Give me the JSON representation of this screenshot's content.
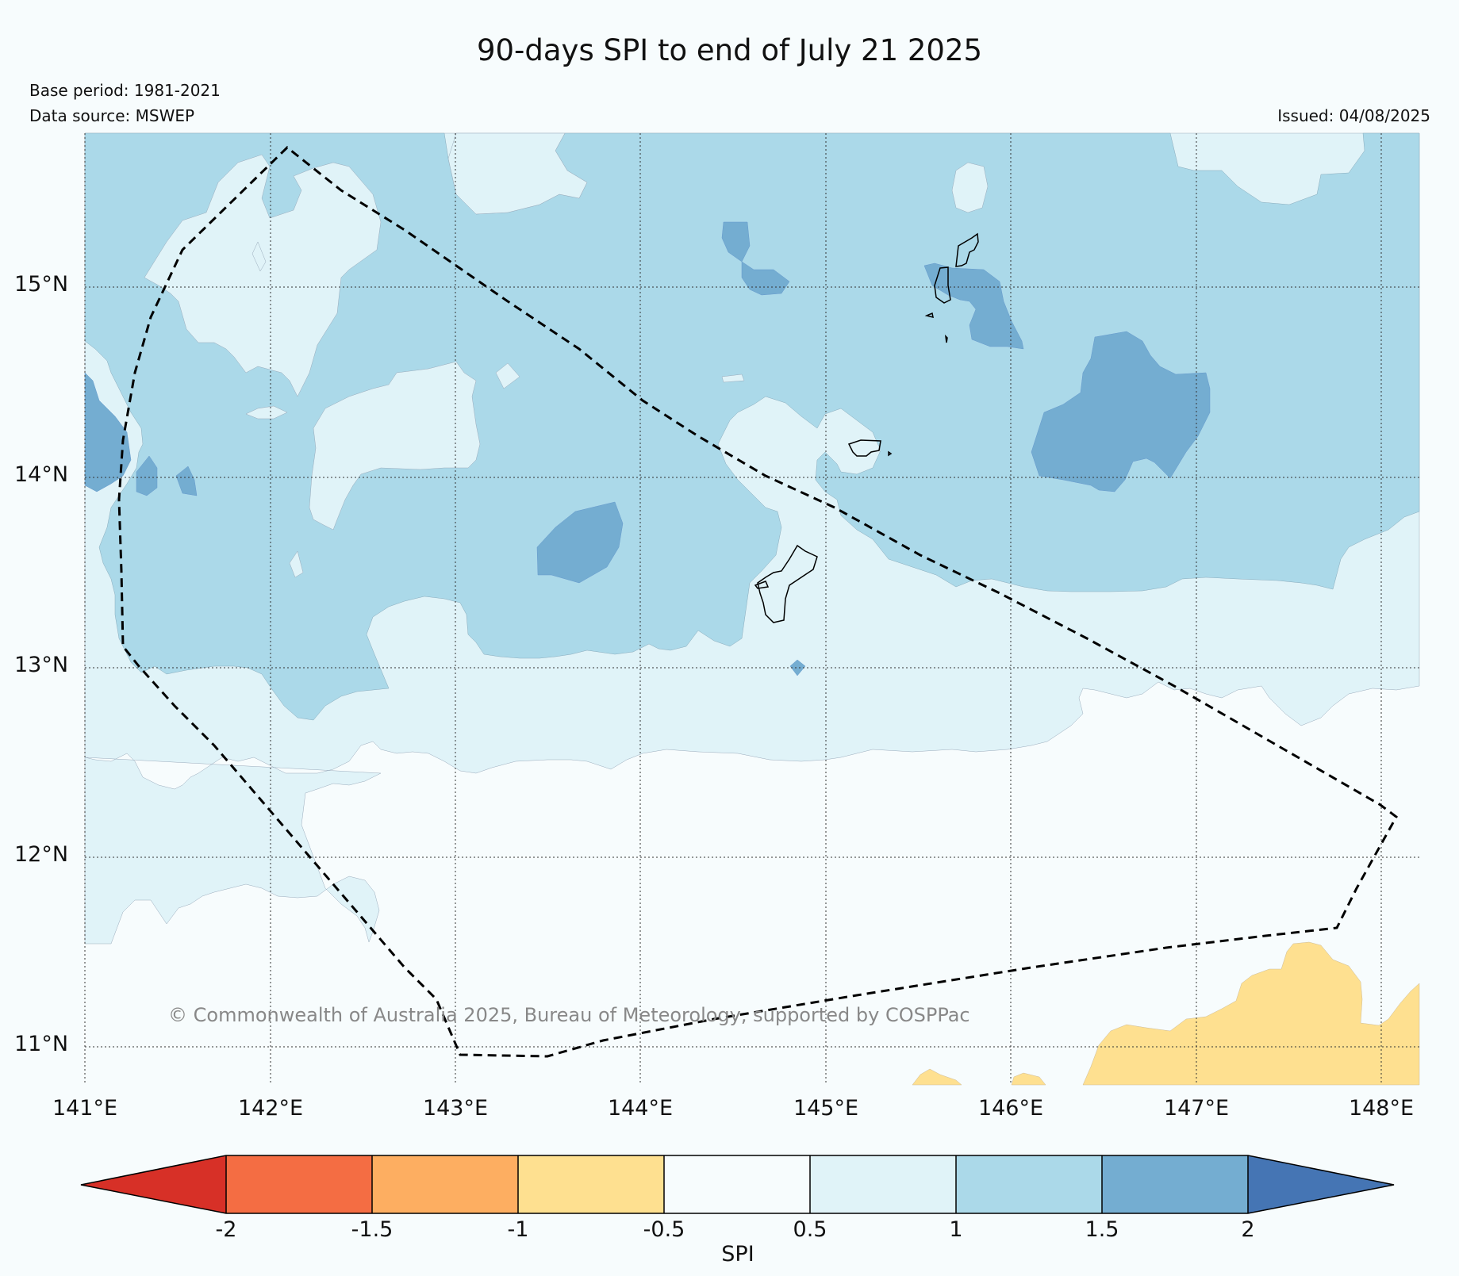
{
  "title": "90-days SPI to end of July 21 2025",
  "base_period": "Base period: 1981-2021",
  "data_source": "Data source: MSWEP",
  "issued": "Issued: 04/08/2025",
  "copyright": "© Commonwealth of Australia 2025, Bureau of Meteorology, supported by COSPPac",
  "map": {
    "lat_labels": [
      "15°N",
      "14°N",
      "13°N",
      "12°N",
      "11°N"
    ],
    "lon_labels": [
      "141°E",
      "142°E",
      "143°E",
      "144°E",
      "145°E",
      "146°E",
      "147°E",
      "148°E"
    ],
    "extent": {
      "lon": [
        141,
        148.2
      ],
      "lat": [
        10.8,
        15.8
      ]
    }
  },
  "legend": {
    "label": "SPI",
    "ticks": [
      "-2",
      "-1.5",
      "-1",
      "-0.5",
      "0.5",
      "1",
      "1.5",
      "2"
    ],
    "colors": {
      "lt_-2": "#d73027",
      "-2_-1.5": "#f46d43",
      "-1.5_-1": "#fdae61",
      "-1_-0.5": "#fee090",
      "-0.5_0.5": "#f7fcfd",
      "0.5_1": "#e0f3f8",
      "1_1.5": "#abd9e9",
      "1.5_2": "#74add1",
      "gt_2": "#4575b4"
    }
  }
}
